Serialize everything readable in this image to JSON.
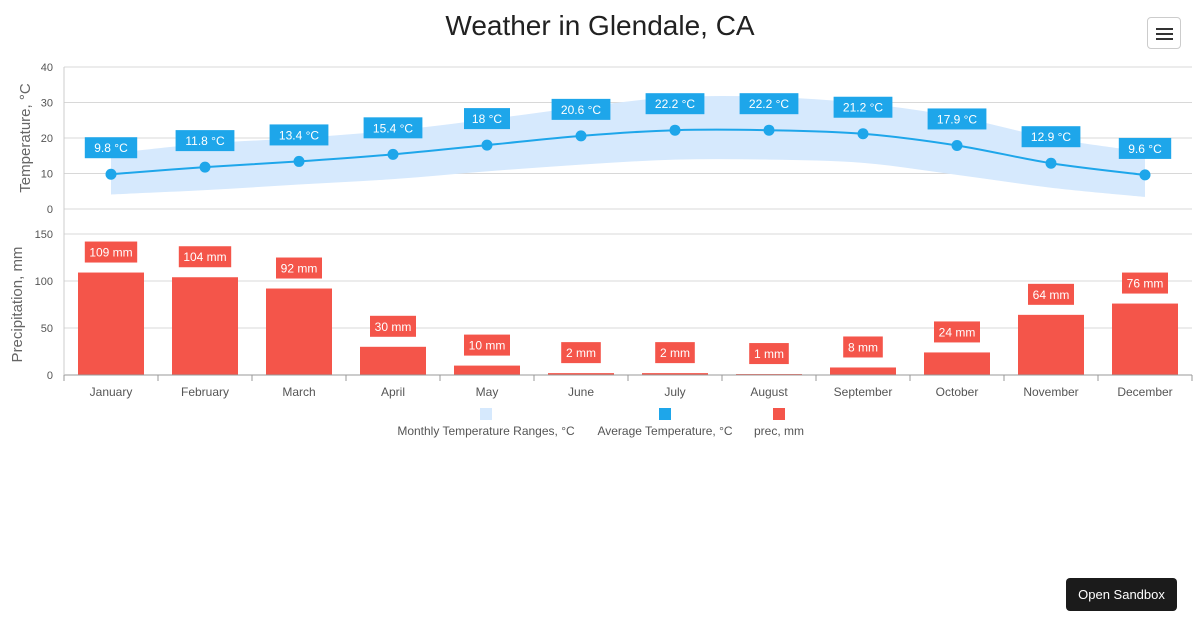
{
  "title": "Weather in Glendale, CA",
  "menu_icon": "hamburger-menu-icon",
  "sandbox_label": "Open Sandbox",
  "colors": {
    "range": "#d6e9fd",
    "average": "#1ea6ea",
    "precip": "#f4554a",
    "grid": "#d8d8d8",
    "axis_text": "#555555"
  },
  "chart_data": [
    {
      "type": "line",
      "categories": [
        "January",
        "February",
        "March",
        "April",
        "May",
        "June",
        "July",
        "August",
        "September",
        "October",
        "November",
        "December"
      ],
      "ylabel": "Temperature, °C",
      "ylim": [
        0,
        40
      ],
      "yticks": [
        "0",
        "10",
        "20",
        "30",
        "40"
      ],
      "series": [
        {
          "name": "Monthly Temperature Ranges, °C",
          "type": "area-range",
          "low": [
            4.1,
            5.3,
            6.9,
            8.4,
            10.6,
            12.5,
            13.9,
            13.9,
            13.0,
            9.6,
            6.0,
            3.4
          ],
          "high": [
            15.6,
            18.4,
            20.0,
            22.1,
            25.2,
            28.7,
            31.5,
            31.6,
            29.8,
            26.0,
            20.0,
            16.1
          ]
        },
        {
          "name": "Average Temperature, °C",
          "type": "line",
          "values": [
            9.8,
            11.8,
            13.4,
            15.4,
            18,
            20.6,
            22.2,
            22.2,
            21.2,
            17.9,
            12.9,
            9.6
          ],
          "labels": [
            "9.8 °C",
            "11.8 °C",
            "13.4 °C",
            "15.4 °C",
            "18 °C",
            "20.6 °C",
            "22.2 °C",
            "22.2 °C",
            "21.2 °C",
            "17.9 °C",
            "12.9 °C",
            "9.6 °C"
          ]
        }
      ]
    },
    {
      "type": "bar",
      "categories": [
        "January",
        "February",
        "March",
        "April",
        "May",
        "June",
        "July",
        "August",
        "September",
        "October",
        "November",
        "December"
      ],
      "ylabel": "Precipitation, mm",
      "ylim": [
        0,
        150
      ],
      "yticks": [
        "0",
        "50",
        "100",
        "150"
      ],
      "series": [
        {
          "name": "prec, mm",
          "values": [
            109,
            104,
            92,
            30,
            10,
            2,
            2,
            1,
            8,
            24,
            64,
            76
          ],
          "labels": [
            "109 mm",
            "104 mm",
            "92 mm",
            "30 mm",
            "10 mm",
            "2 mm",
            "2 mm",
            "1 mm",
            "8 mm",
            "24 mm",
            "64 mm",
            "76 mm"
          ]
        }
      ]
    }
  ],
  "legend": [
    {
      "label": "Monthly Temperature Ranges, °C",
      "color": "#d6e9fd"
    },
    {
      "label": "Average Temperature, °C",
      "color": "#1ea6ea"
    },
    {
      "label": "prec, mm",
      "color": "#f4554a"
    }
  ]
}
